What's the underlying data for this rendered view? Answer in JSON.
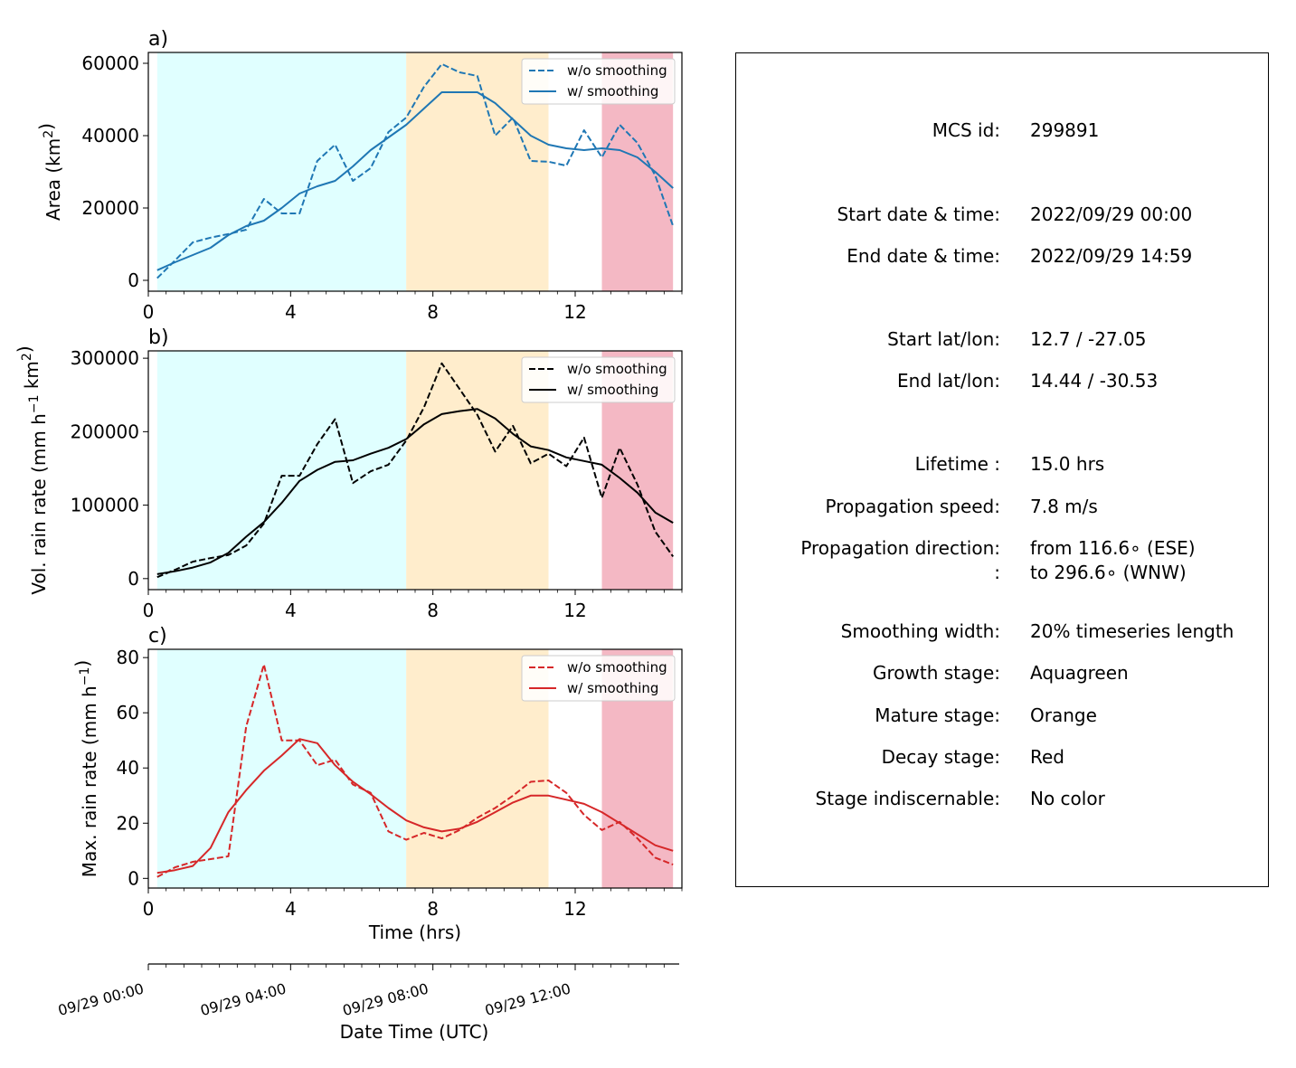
{
  "chart_data": [
    {
      "type": "line",
      "panel_label": "a)",
      "ylabel_main": "Area  (km",
      "ylabel_sup": "2",
      "ylabel_end": ")",
      "ylim": [
        -3000,
        63000
      ],
      "yticks": [
        0,
        20000,
        40000,
        60000
      ],
      "xlim": [
        0,
        15
      ],
      "xticks": [
        0,
        4,
        8,
        12
      ],
      "color": "#1f77b4",
      "legend": [
        "w/o smoothing",
        "w/ smoothing"
      ],
      "legend_position": "top-right",
      "x": [
        0.25,
        0.75,
        1.25,
        1.75,
        2.25,
        2.75,
        3.25,
        3.75,
        4.25,
        4.75,
        5.25,
        5.75,
        6.25,
        6.75,
        7.25,
        7.75,
        8.25,
        8.75,
        9.25,
        9.75,
        10.25,
        10.75,
        11.25,
        11.75,
        12.25,
        12.75,
        13.25,
        13.75,
        14.25,
        14.75
      ],
      "series": [
        {
          "name": "w/o smoothing",
          "style": "dashed",
          "values": [
            600,
            5500,
            10500,
            11800,
            12800,
            14000,
            22500,
            18500,
            18500,
            33000,
            37500,
            27500,
            31000,
            41000,
            45000,
            53500,
            59800,
            57500,
            56500,
            40000,
            45000,
            33000,
            32800,
            31700,
            41500,
            34000,
            43000,
            38000,
            29000,
            15000
          ]
        },
        {
          "name": "w/ smoothing",
          "style": "solid",
          "values": [
            2800,
            5000,
            7000,
            9000,
            12500,
            15000,
            16500,
            20000,
            24000,
            26000,
            27500,
            31500,
            36000,
            39500,
            43000,
            47500,
            52000,
            52000,
            52000,
            49000,
            44500,
            40000,
            37500,
            36500,
            36000,
            36500,
            36000,
            34000,
            30000,
            25500
          ]
        }
      ]
    },
    {
      "type": "line",
      "panel_label": "b)",
      "ylabel_main": "Vol. rain rate (mm h",
      "ylabel_sup1": "−1",
      "ylabel_mid": " km",
      "ylabel_sup2": "2",
      "ylabel_end": ")",
      "ylim": [
        -15000,
        310000
      ],
      "yticks": [
        0,
        100000,
        200000,
        300000
      ],
      "xlim": [
        0,
        15
      ],
      "xticks": [
        0,
        4,
        8,
        12
      ],
      "color": "#000000",
      "legend": [
        "w/o smoothing",
        "w/ smoothing"
      ],
      "legend_position": "top-right",
      "x": [
        0.25,
        0.75,
        1.25,
        1.75,
        2.25,
        2.75,
        3.25,
        3.75,
        4.25,
        4.75,
        5.25,
        5.75,
        6.25,
        6.75,
        7.25,
        7.75,
        8.25,
        8.75,
        9.25,
        9.75,
        10.25,
        10.75,
        11.25,
        11.75,
        12.25,
        12.75,
        13.25,
        13.75,
        14.25,
        14.75
      ],
      "series": [
        {
          "name": "w/o smoothing",
          "style": "dashed",
          "values": [
            2000,
            12000,
            23000,
            28000,
            32000,
            45000,
            75000,
            140000,
            140000,
            183000,
            217000,
            130000,
            146000,
            155000,
            188000,
            233000,
            293000,
            258000,
            223000,
            173000,
            208000,
            157000,
            170000,
            153000,
            192000,
            110000,
            178000,
            128000,
            64000,
            30000
          ]
        },
        {
          "name": "w/ smoothing",
          "style": "solid",
          "values": [
            6000,
            10000,
            15000,
            22000,
            35000,
            57000,
            77000,
            103000,
            133000,
            148000,
            159000,
            161000,
            170000,
            178000,
            190000,
            210000,
            224000,
            228000,
            231000,
            218000,
            197000,
            180000,
            175000,
            165000,
            160000,
            155000,
            137000,
            117000,
            90000,
            76000
          ]
        }
      ]
    },
    {
      "type": "line",
      "panel_label": "c)",
      "ylabel_main": "Max. rain rate  (mm h",
      "ylabel_sup": "−1",
      "ylabel_end": ")",
      "ylim": [
        -3.5,
        83
      ],
      "yticks": [
        0,
        20,
        40,
        60,
        80
      ],
      "xlim": [
        0,
        15
      ],
      "xticks": [
        0,
        4,
        8,
        12
      ],
      "xlabel": "Time (hrs)",
      "color": "#d62728",
      "legend": [
        "w/o smoothing",
        "w/ smoothing"
      ],
      "legend_position": "top-right",
      "x": [
        0.25,
        0.75,
        1.25,
        1.75,
        2.25,
        2.75,
        3.25,
        3.75,
        4.25,
        4.75,
        5.25,
        5.75,
        6.25,
        6.75,
        7.25,
        7.75,
        8.25,
        8.75,
        9.25,
        9.75,
        10.25,
        10.75,
        11.25,
        11.75,
        12.25,
        12.75,
        13.25,
        13.75,
        14.25,
        14.75
      ],
      "series": [
        {
          "name": "w/o smoothing",
          "style": "dashed",
          "values": [
            0.5,
            4,
            6,
            7,
            8,
            55,
            77.5,
            50,
            50,
            41,
            43,
            34,
            31,
            17,
            14,
            16.5,
            14.5,
            17.5,
            22,
            25.5,
            30,
            35,
            35.5,
            31,
            23,
            17.5,
            20.5,
            14.5,
            7.5,
            5
          ]
        },
        {
          "name": "w/ smoothing",
          "style": "solid",
          "values": [
            2,
            3,
            4.5,
            11,
            24,
            32,
            39,
            44.5,
            50.5,
            49,
            41,
            35,
            30.5,
            25.5,
            21,
            18.5,
            17,
            18,
            20.5,
            24,
            27.5,
            30,
            30,
            28.5,
            27,
            24,
            20,
            16,
            12,
            10
          ]
        }
      ]
    }
  ],
  "stages": [
    {
      "name": "Growth stage",
      "start": 0.25,
      "end": 7.25,
      "color": "#e0ffff"
    },
    {
      "name": "Mature stage",
      "start": 7.25,
      "end": 11.25,
      "color": "#ffedcc"
    },
    {
      "name": "Decay stage",
      "start": 12.75,
      "end": 14.75,
      "color": "#f4b8c4"
    }
  ],
  "datetime_axis": {
    "label": "Date Time (UTC)",
    "ticks": [
      {
        "x": 0,
        "label": "09/29 00:00"
      },
      {
        "x": 4,
        "label": "09/29 04:00"
      },
      {
        "x": 8,
        "label": "09/29 08:00"
      },
      {
        "x": 12,
        "label": "09/29 12:00"
      }
    ],
    "minor_step": 0.5
  },
  "info": {
    "mcs_id_label": "MCS id:",
    "mcs_id_value": "299891",
    "start_dt_label": "Start date & time:",
    "start_dt_value": "2022/09/29 00:00",
    "end_dt_label": "End date & time:",
    "end_dt_value": "2022/09/29 14:59",
    "start_ll_label": "Start lat/lon:",
    "start_ll_value": "12.7 / -27.05",
    "end_ll_label": "End lat/lon:",
    "end_ll_value": "14.44 / -30.53",
    "lifetime_label": "Lifetime :",
    "lifetime_value": "15.0 hrs",
    "speed_label": "Propagation speed:",
    "speed_value": "7.8 m/s",
    "direction_label": "Propagation direction:",
    "direction_value_1": "from 116.6∘ (ESE)",
    "direction_label_2": ":",
    "direction_value_2": "to   296.6∘ (WNW)",
    "smoothing_label": "Smoothing width:",
    "smoothing_value": "20% timeseries length",
    "growth_label": "Growth stage:",
    "growth_value": "Aquagreen",
    "mature_label": "Mature stage:",
    "mature_value": "Orange",
    "decay_label": "Decay stage:",
    "decay_value": "Red",
    "indisc_label": "Stage indiscernable:",
    "indisc_value": "No color"
  }
}
